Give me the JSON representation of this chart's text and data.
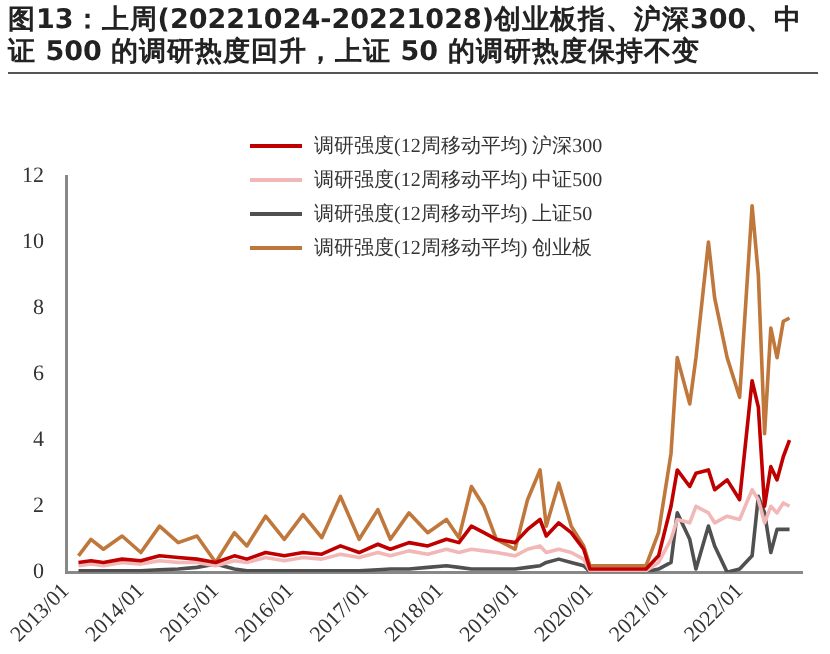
{
  "chart_data": {
    "type": "line",
    "title": "图13：上周(20221024-20221028)创业板指、沪深300、中证 500 的调研热度回升，上证 50 的调研热度保持不变",
    "x": [
      "2013-03",
      "2013-05",
      "2013-07",
      "2013-10",
      "2014-01",
      "2014-04",
      "2014-07",
      "2014-10",
      "2015-01",
      "2015-04",
      "2015-06",
      "2015-09",
      "2015-12",
      "2016-03",
      "2016-06",
      "2016-09",
      "2016-12",
      "2017-03",
      "2017-05",
      "2017-08",
      "2017-11",
      "2018-02",
      "2018-04",
      "2018-06",
      "2018-08",
      "2018-10",
      "2019-01",
      "2019-03",
      "2019-05",
      "2019-06",
      "2019-08",
      "2019-10",
      "2019-12",
      "2020-01",
      "2020-10",
      "2020-12",
      "2021-02",
      "2021-03",
      "2021-05",
      "2021-06",
      "2021-08",
      "2021-09",
      "2021-11",
      "2022-01",
      "2022-03",
      "2022-04",
      "2022-05",
      "2022-06",
      "2022-07",
      "2022-08",
      "2022-09"
    ],
    "series": [
      {
        "name": "调研强度(12周移动平均) 沪深300",
        "color": "#c00000",
        "values": [
          0.3,
          0.35,
          0.3,
          0.4,
          0.35,
          0.5,
          0.45,
          0.4,
          0.3,
          0.5,
          0.4,
          0.6,
          0.5,
          0.6,
          0.55,
          0.8,
          0.6,
          0.85,
          0.7,
          0.9,
          0.8,
          1.0,
          0.9,
          1.4,
          1.2,
          1.0,
          0.9,
          1.3,
          1.6,
          1.1,
          1.5,
          1.2,
          0.7,
          0.1,
          0.1,
          0.5,
          2.0,
          3.1,
          2.6,
          3.0,
          3.1,
          2.5,
          2.8,
          2.2,
          5.8,
          5.0,
          2.0,
          3.2,
          2.8,
          3.5,
          4.0
        ]
      },
      {
        "name": "调研强度(12周移动平均) 中证500",
        "color": "#f2b8b8",
        "values": [
          0.2,
          0.25,
          0.2,
          0.3,
          0.25,
          0.35,
          0.3,
          0.3,
          0.2,
          0.35,
          0.3,
          0.45,
          0.35,
          0.45,
          0.4,
          0.55,
          0.45,
          0.6,
          0.5,
          0.65,
          0.55,
          0.7,
          0.6,
          0.7,
          0.65,
          0.6,
          0.5,
          0.7,
          0.8,
          0.6,
          0.7,
          0.6,
          0.4,
          0.05,
          0.05,
          0.3,
          1.0,
          1.6,
          1.5,
          2.0,
          1.8,
          1.5,
          1.7,
          1.6,
          2.5,
          2.2,
          1.5,
          2.0,
          1.8,
          2.1,
          2.0
        ]
      },
      {
        "name": "调研强度(12周移动平均) 上证50",
        "color": "#505050",
        "values": [
          0.05,
          0.05,
          0.05,
          0.05,
          0.05,
          0.08,
          0.1,
          0.15,
          0.25,
          0.1,
          0.05,
          0.05,
          0.05,
          0.05,
          0.05,
          0.05,
          0.05,
          0.08,
          0.1,
          0.1,
          0.15,
          0.2,
          0.15,
          0.1,
          0.1,
          0.1,
          0.1,
          0.15,
          0.2,
          0.3,
          0.4,
          0.3,
          0.2,
          0.02,
          0.02,
          0.1,
          0.3,
          1.8,
          1.0,
          0.1,
          1.4,
          0.8,
          0.0,
          0.1,
          0.5,
          2.3,
          1.8,
          0.6,
          1.3,
          1.3,
          1.3
        ]
      },
      {
        "name": "调研强度(12周移动平均) 创业板",
        "color": "#c0773c",
        "values": [
          0.5,
          1.0,
          0.7,
          1.1,
          0.6,
          1.4,
          0.9,
          1.1,
          0.3,
          1.2,
          0.8,
          1.7,
          1.0,
          1.75,
          1.05,
          2.3,
          1.0,
          1.9,
          1.0,
          1.8,
          1.2,
          1.6,
          1.05,
          2.6,
          2.0,
          1.0,
          0.7,
          2.2,
          3.1,
          1.4,
          2.7,
          1.4,
          0.8,
          0.2,
          0.2,
          1.2,
          3.6,
          6.5,
          5.1,
          6.5,
          10.0,
          8.3,
          6.5,
          5.3,
          11.1,
          9.0,
          4.2,
          7.4,
          6.5,
          7.6,
          7.7
        ]
      }
    ],
    "xlim": [
      "2013-01",
      "2022-11"
    ],
    "xticks": [
      {
        "value": "2013-01",
        "label": "2013/01"
      },
      {
        "value": "2014-01",
        "label": "2014/01"
      },
      {
        "value": "2015-01",
        "label": "2015/01"
      },
      {
        "value": "2016-01",
        "label": "2016/01"
      },
      {
        "value": "2017-01",
        "label": "2017/01"
      },
      {
        "value": "2018-01",
        "label": "2018/01"
      },
      {
        "value": "2019-01",
        "label": "2019/01"
      },
      {
        "value": "2020-01",
        "label": "2020/01"
      },
      {
        "value": "2021-01",
        "label": "2021/01"
      },
      {
        "value": "2022-01",
        "label": "2022/01"
      }
    ],
    "ylim": [
      0,
      12
    ],
    "yticks": [
      0,
      2,
      4,
      6,
      8,
      10,
      12
    ],
    "grid": false,
    "legend": "top",
    "marker": "none",
    "line_style": "solid"
  }
}
